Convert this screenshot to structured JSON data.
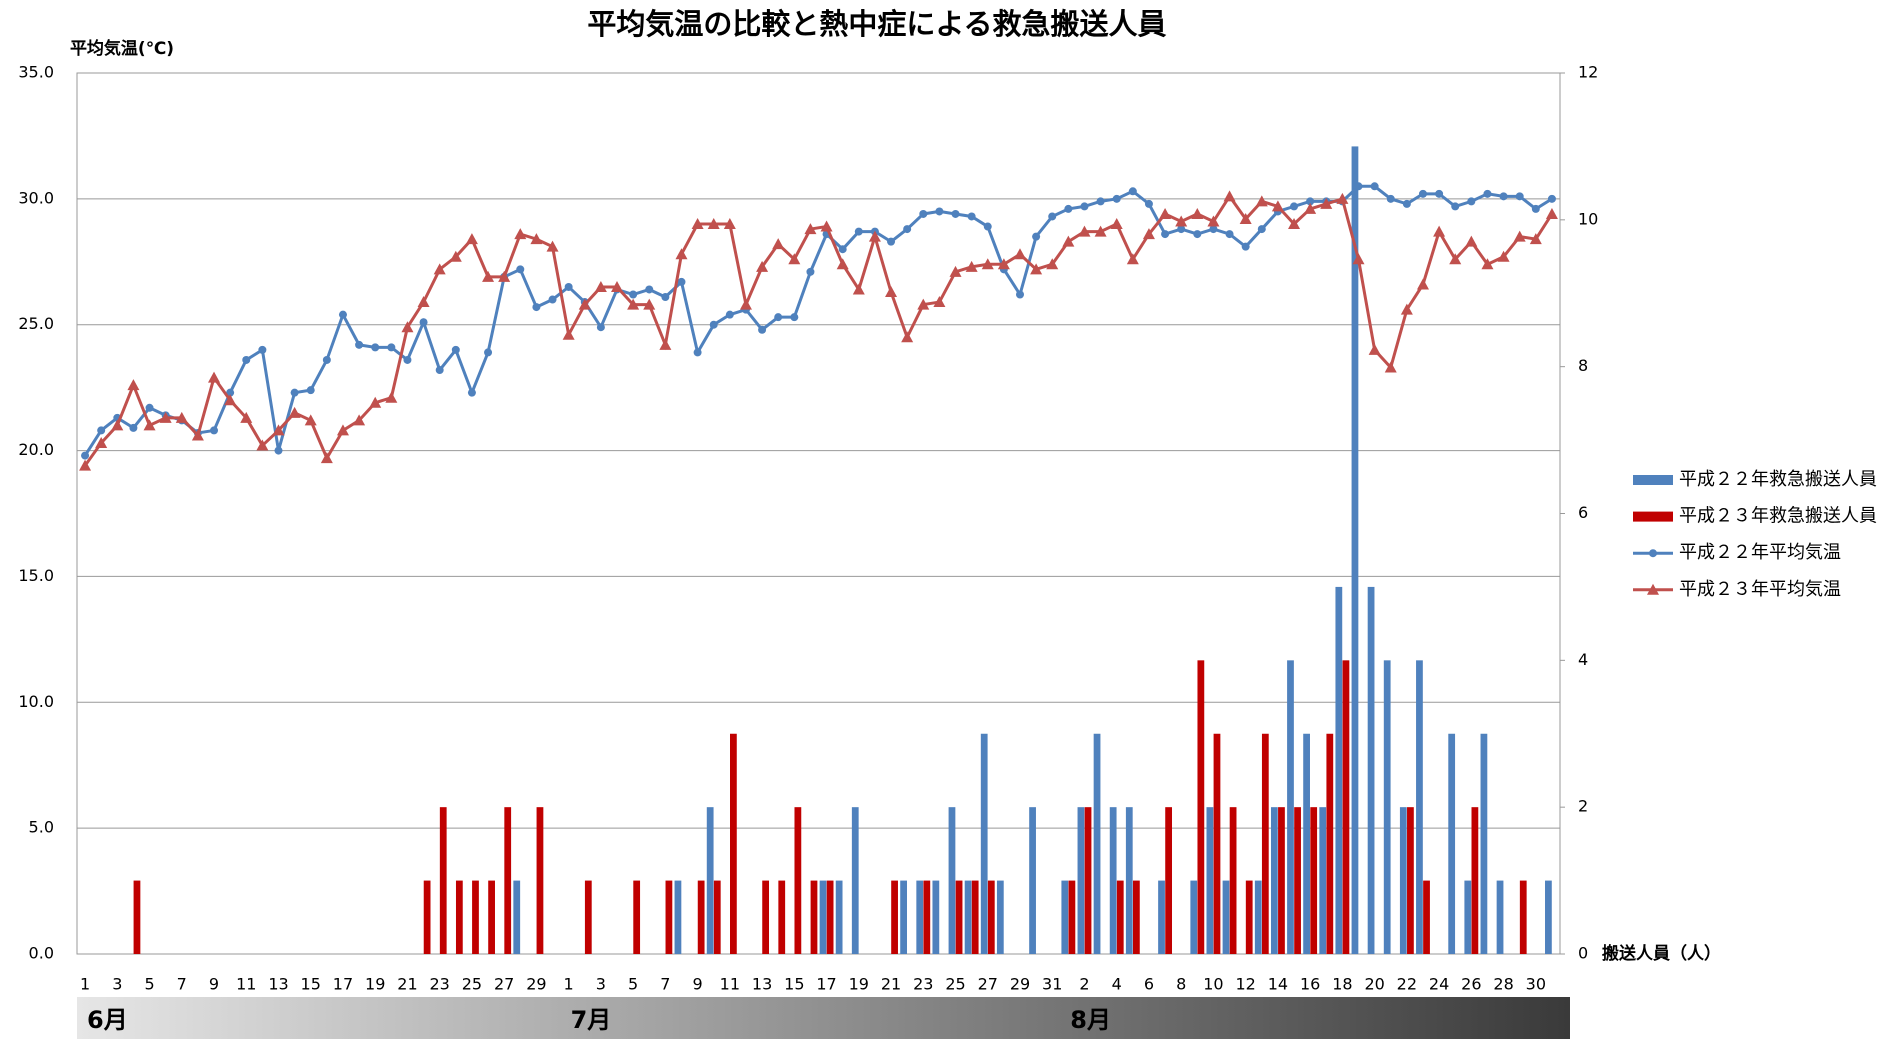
{
  "chart_data": {
    "type": "combo",
    "title": "平均気温の比較と熱中症による救急搬送人員",
    "y_label": "平均気温(℃)",
    "y2_label": "搬送人員（人）",
    "months": [
      "6月",
      "7月",
      "8月"
    ],
    "categories": [
      "1",
      null,
      "3",
      null,
      "5",
      null,
      "7",
      null,
      "9",
      null,
      "11",
      null,
      "13",
      null,
      "15",
      null,
      "17",
      null,
      "19",
      null,
      "21",
      null,
      "23",
      null,
      "25",
      null,
      "27",
      null,
      "29",
      null,
      "1",
      null,
      "3",
      null,
      "5",
      null,
      "7",
      null,
      "9",
      null,
      "11",
      null,
      "13",
      null,
      "15",
      null,
      "17",
      null,
      "19",
      null,
      "21",
      null,
      "23",
      null,
      "25",
      null,
      "27",
      null,
      "29",
      null,
      "31",
      null,
      "2",
      null,
      "4",
      null,
      "6",
      null,
      "8",
      null,
      "10",
      null,
      "12",
      null,
      "14",
      null,
      "16",
      null,
      "18",
      null,
      "20",
      null,
      "22",
      null,
      "24",
      null,
      "26",
      null,
      "28",
      null,
      "30",
      null
    ],
    "ylim": [
      0,
      35
    ],
    "yticks": [
      {
        "value": 0,
        "label": "0.0"
      },
      {
        "value": 5,
        "label": "5.0"
      },
      {
        "value": 10,
        "label": "10.0"
      },
      {
        "value": 15,
        "label": "15.0"
      },
      {
        "value": 20,
        "label": "20.0"
      },
      {
        "value": 25,
        "label": "25.0"
      },
      {
        "value": 30,
        "label": "30.0"
      },
      {
        "value": 35,
        "label": "35.0"
      }
    ],
    "y2lim": [
      0,
      12
    ],
    "y2ticks": [
      0,
      2,
      4,
      6,
      8,
      10,
      12
    ],
    "grid": true,
    "legend": "right",
    "series": [
      {
        "name": "平成２２年救急搬送人員",
        "type": "bar",
        "axis": "y2",
        "color": "#4f81bd",
        "values": [
          0,
          0,
          0,
          0,
          0,
          0,
          0,
          0,
          0,
          0,
          0,
          0,
          0,
          0,
          0,
          0,
          0,
          0,
          0,
          0,
          0,
          0,
          0,
          0,
          0,
          0,
          0,
          1,
          0,
          0,
          0,
          0,
          0,
          0,
          0,
          0,
          0,
          1,
          0,
          2,
          0,
          0,
          0,
          0,
          0,
          0,
          1,
          1,
          2,
          0,
          0,
          1,
          1,
          1,
          2,
          1,
          3,
          1,
          0,
          2,
          0,
          1,
          2,
          3,
          2,
          2,
          0,
          1,
          0,
          1,
          2,
          1,
          0,
          1,
          2,
          4,
          3,
          2,
          5,
          11,
          5,
          4,
          2,
          4,
          0,
          3,
          1,
          3,
          1,
          0,
          0,
          1
        ]
      },
      {
        "name": "平成２３年救急搬送人員",
        "type": "bar",
        "axis": "y2",
        "color": "#c00000",
        "values": [
          0,
          0,
          0,
          1,
          0,
          0,
          0,
          0,
          0,
          0,
          0,
          0,
          0,
          0,
          0,
          0,
          0,
          0,
          0,
          0,
          0,
          1,
          2,
          1,
          1,
          1,
          2,
          0,
          2,
          0,
          0,
          1,
          0,
          0,
          1,
          0,
          1,
          0,
          1,
          1,
          3,
          0,
          1,
          1,
          2,
          1,
          1,
          0,
          0,
          0,
          1,
          0,
          1,
          0,
          1,
          1,
          1,
          0,
          0,
          0,
          0,
          1,
          2,
          0,
          1,
          1,
          0,
          2,
          0,
          4,
          3,
          2,
          1,
          3,
          2,
          2,
          2,
          3,
          4,
          0,
          0,
          0,
          2,
          1,
          0,
          0,
          2,
          0,
          0,
          1,
          0,
          0
        ]
      },
      {
        "name": "平成２２年平均気温",
        "type": "line",
        "marker": "circle",
        "color": "#4f81bd",
        "values": [
          19.8,
          20.8,
          21.3,
          20.9,
          21.7,
          21.4,
          21.2,
          20.7,
          20.8,
          22.3,
          23.6,
          24.0,
          20.0,
          22.3,
          22.4,
          23.6,
          25.4,
          24.2,
          24.1,
          24.1,
          23.6,
          25.1,
          23.2,
          24.0,
          22.3,
          23.9,
          26.9,
          27.2,
          25.7,
          26.0,
          26.5,
          25.9,
          24.9,
          26.4,
          26.2,
          26.4,
          26.1,
          26.7,
          23.9,
          25.0,
          25.4,
          25.6,
          24.8,
          25.3,
          25.3,
          27.1,
          28.6,
          28.0,
          28.7,
          28.7,
          28.3,
          28.8,
          29.4,
          29.5,
          29.4,
          29.3,
          28.9,
          27.2,
          26.2,
          28.5,
          29.3,
          29.6,
          29.7,
          29.9,
          30.0,
          30.3,
          29.8,
          28.6,
          28.8,
          28.6,
          28.8,
          28.6,
          28.1,
          28.8,
          29.5,
          29.7,
          29.9,
          29.9,
          29.9,
          30.5,
          30.5,
          30.0,
          29.8,
          30.2,
          30.2,
          29.7,
          29.9,
          30.2,
          30.1,
          30.1,
          29.6,
          30.0
        ]
      },
      {
        "name": "平成２３年平均気温",
        "type": "line",
        "marker": "triangle",
        "color": "#c0504d",
        "values": [
          19.4,
          20.3,
          21.0,
          22.6,
          21.0,
          21.3,
          21.3,
          20.6,
          22.9,
          22.0,
          21.3,
          20.2,
          20.8,
          21.5,
          21.2,
          19.7,
          20.8,
          21.2,
          21.9,
          22.1,
          24.9,
          25.9,
          27.2,
          27.7,
          28.4,
          26.9,
          26.9,
          28.6,
          28.4,
          28.1,
          24.6,
          25.8,
          26.5,
          26.5,
          25.8,
          25.8,
          24.2,
          27.8,
          29.0,
          29.0,
          29.0,
          25.8,
          27.3,
          28.2,
          27.6,
          28.8,
          28.9,
          27.4,
          26.4,
          28.5,
          26.3,
          24.5,
          25.8,
          25.9,
          27.1,
          27.3,
          27.4,
          27.4,
          27.8,
          27.2,
          27.4,
          28.3,
          28.7,
          28.7,
          29.0,
          27.6,
          28.6,
          29.4,
          29.1,
          29.4,
          29.1,
          30.1,
          29.2,
          29.9,
          29.7,
          29.0,
          29.6,
          29.8,
          30.0,
          27.6,
          24.0,
          23.3,
          25.6,
          26.6,
          28.7,
          27.6,
          28.3,
          27.4,
          27.7,
          28.5,
          28.4,
          29.4
        ]
      }
    ]
  }
}
